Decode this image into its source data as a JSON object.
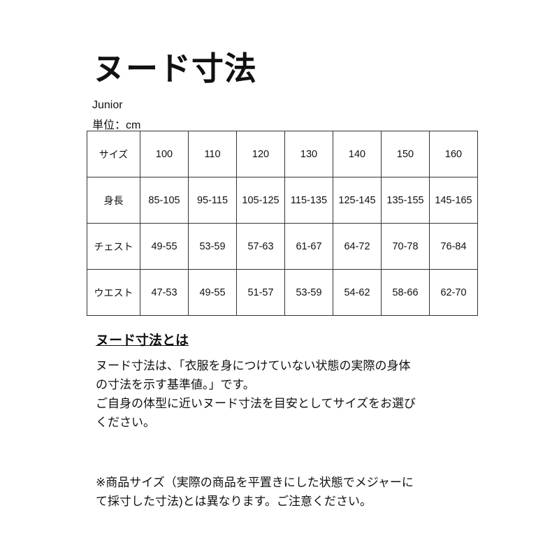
{
  "title": "ヌード寸法",
  "category": "Junior",
  "unit": "単位：cm",
  "table": {
    "rows": [
      {
        "label": "サイズ",
        "values": [
          "100",
          "110",
          "120",
          "130",
          "140",
          "150",
          "160"
        ]
      },
      {
        "label": "身長",
        "values": [
          "85-105",
          "95-115",
          "105-125",
          "115-135",
          "125-145",
          "135-155",
          "145-165"
        ]
      },
      {
        "label": "チェスト",
        "values": [
          "49-55",
          "53-59",
          "57-63",
          "61-67",
          "64-72",
          "70-78",
          "76-84"
        ]
      },
      {
        "label": "ウエスト",
        "values": [
          "47-53",
          "49-55",
          "51-57",
          "53-59",
          "54-62",
          "58-66",
          "62-70"
        ]
      }
    ]
  },
  "section_title": "ヌード寸法とは",
  "paragraph1": [
    "ヌード寸法は、「衣服を身につけていない状態の実際の身体",
    "の寸法を示す基準値。」です。",
    "ご自身の体型に近いヌード寸法を目安としてサイズをお選び",
    "ください。"
  ],
  "note": [
    "※商品サイズ（実際の商品を平置きにした状態でメジャーに",
    "て採寸した寸法)とは異なります。ご注意ください。"
  ]
}
